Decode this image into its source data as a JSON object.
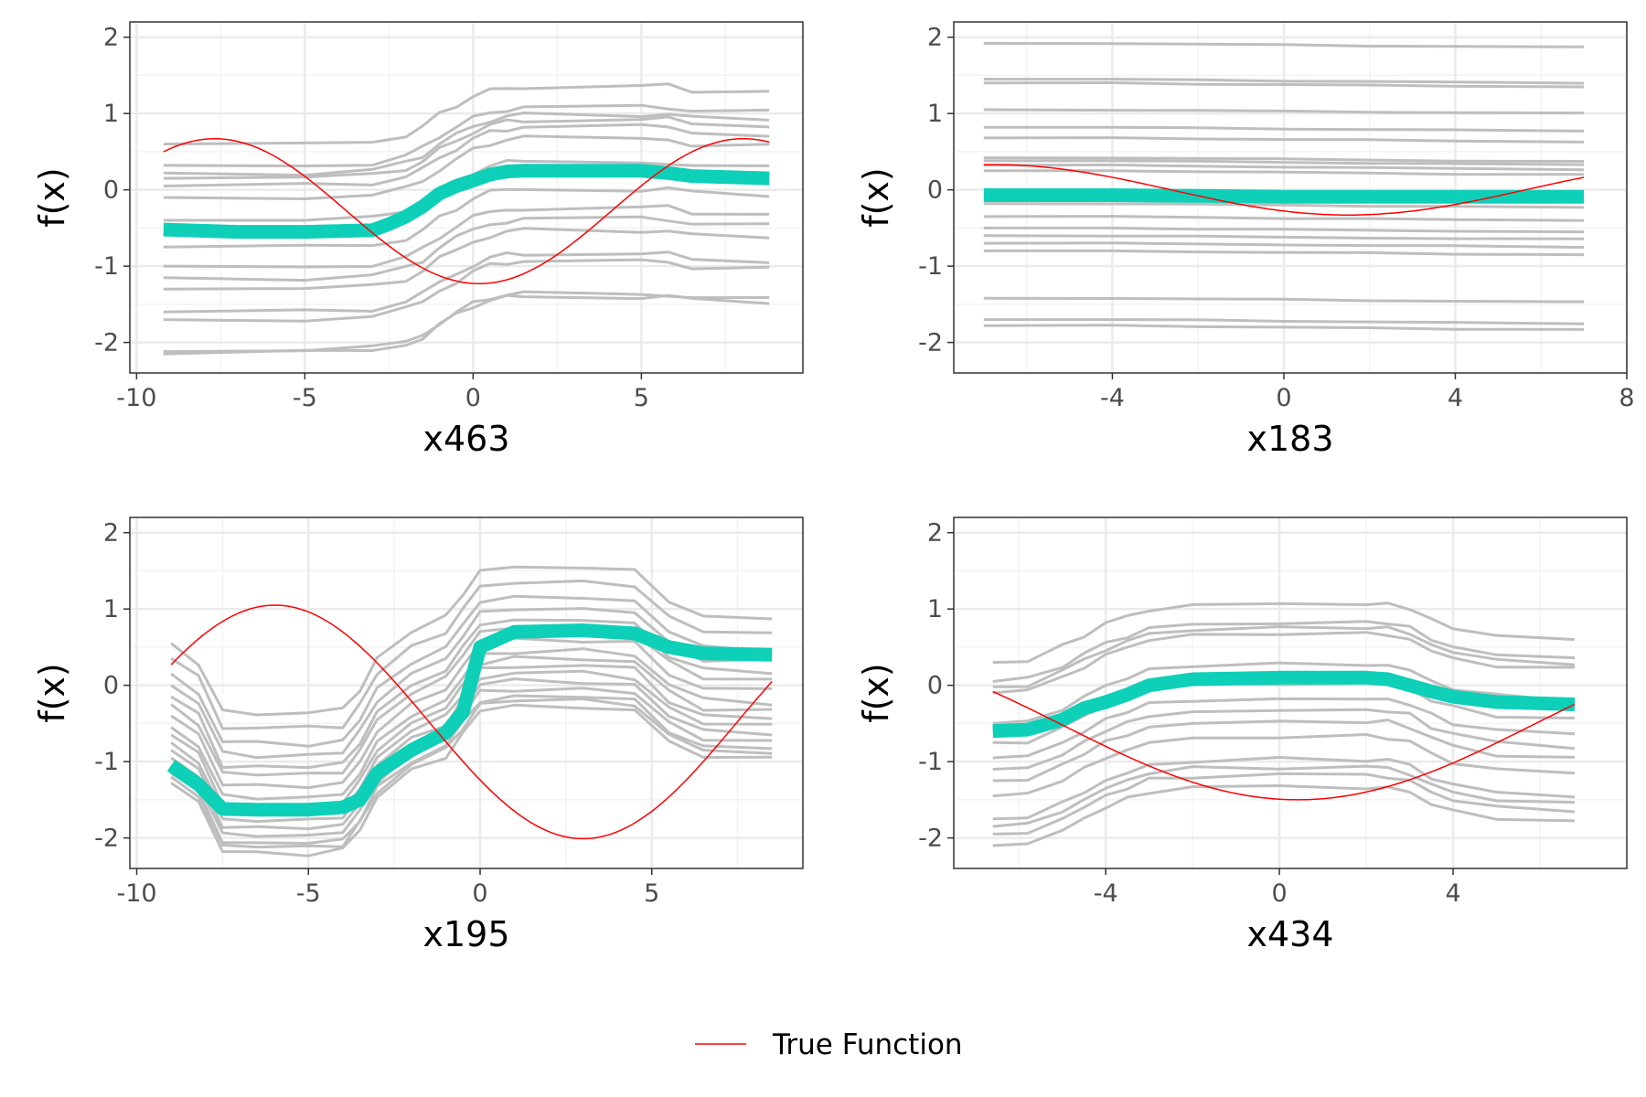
{
  "colors": {
    "ice": "#bebebe",
    "pdp": "#0ecfb8",
    "true_function": "#ff0000",
    "grid_major": "#ebebeb",
    "grid_minor": "#f3f3f3",
    "panel_border": "#333333",
    "tick_text": "#4d4d4d"
  },
  "legend": {
    "items": [
      {
        "label": "True Function",
        "color": "#ff0000"
      }
    ],
    "position": "bottom-center"
  },
  "chart_data": [
    {
      "type": "line",
      "xlabel": "x463",
      "ylabel": "f(x)",
      "xlim": [
        -10.2,
        9.8
      ],
      "ylim": [
        -2.4,
        2.2
      ],
      "xticks": [
        -10,
        -5,
        0,
        5
      ],
      "xtick_labels": [
        "-10",
        "-5",
        "0",
        "5"
      ],
      "yticks": [
        -2,
        -1,
        0,
        1,
        2
      ],
      "ytick_labels": [
        "-2",
        "-1",
        "0",
        "1",
        "2"
      ],
      "grid": true,
      "ice": {
        "x": [
          -9.2,
          -5,
          -3,
          -2,
          -1.5,
          -1,
          -0.5,
          0,
          0.5,
          1,
          1.5,
          5,
          5.8,
          6.5,
          8.8
        ],
        "offsets": [
          0.6,
          0.32,
          0.22,
          0.15,
          0.05,
          -0.1,
          -0.4,
          -0.75,
          -1.0,
          -1.15,
          -1.3,
          -1.6,
          -1.7,
          -2.12,
          -2.15
        ],
        "shape": [
          0,
          0,
          0.03,
          0.12,
          0.22,
          0.38,
          0.5,
          0.62,
          0.7,
          0.74,
          0.76,
          0.76,
          0.76,
          0.7,
          0.68
        ],
        "spread": [
          0.13,
          0.04,
          -0.02,
          -0.08,
          0.05,
          0.1,
          -0.05,
          0.0,
          0.07,
          -0.03,
          -0.1,
          0.02,
          0.08,
          -0.06,
          0.03
        ]
      },
      "pdp": {
        "x": [
          -9.2,
          -7,
          -5,
          -3,
          -2.5,
          -2,
          -1.5,
          -1,
          -0.5,
          0,
          0.5,
          1,
          1.5,
          3,
          5,
          5.8,
          6.5,
          8.8
        ],
        "y": [
          -0.52,
          -0.55,
          -0.55,
          -0.53,
          -0.45,
          -0.35,
          -0.22,
          -0.05,
          0.05,
          0.12,
          0.2,
          0.24,
          0.25,
          0.25,
          0.25,
          0.22,
          0.18,
          0.15
        ]
      },
      "true_function": {
        "amplitude": 0.95,
        "omega": 0.4,
        "phase": 1.5,
        "offset": -0.28,
        "xrange": [
          -9.2,
          8.8
        ]
      }
    },
    {
      "type": "line",
      "xlabel": "x183",
      "ylabel": "f(x)",
      "xlim": [
        -7.7,
        8.0
      ],
      "ylim": [
        -2.4,
        2.2
      ],
      "xticks": [
        -4,
        0,
        4,
        8
      ],
      "xtick_labels": [
        "-4",
        "0",
        "4",
        "8"
      ],
      "yticks": [
        -2,
        -1,
        0,
        1,
        2
      ],
      "ytick_labels": [
        "-2",
        "-1",
        "0",
        "1",
        "2"
      ],
      "grid": true,
      "ice": {
        "x": [
          -7,
          -4,
          -2,
          0,
          2,
          4,
          7
        ],
        "offsets": [
          1.92,
          1.45,
          1.4,
          1.05,
          0.82,
          0.68,
          0.42,
          0.38,
          0.32,
          0.25,
          -0.18,
          -0.35,
          -0.5,
          -0.6,
          -0.7,
          -0.8,
          -1.42,
          -1.7,
          -1.78
        ],
        "shape": [
          0,
          0,
          -0.01,
          -0.02,
          -0.03,
          -0.04,
          -0.05
        ],
        "spread": [
          0.02,
          -0.01,
          0.0,
          0.01,
          -0.02,
          0.0,
          0.01,
          -0.01,
          0.0,
          0.02,
          0.0,
          -0.01,
          0.01,
          0.0,
          -0.02,
          0.01,
          0.0,
          -0.01,
          0.0
        ]
      },
      "pdp": {
        "x": [
          -7,
          -4,
          -2,
          0,
          2,
          4,
          7
        ],
        "y": [
          -0.07,
          -0.07,
          -0.08,
          -0.09,
          -0.09,
          -0.09,
          -0.09
        ]
      },
      "true_function": {
        "amplitude": 0.33,
        "omega": 0.38,
        "phase": 1.0,
        "offset": 0.0,
        "xrange": [
          -7,
          7
        ]
      }
    },
    {
      "type": "line",
      "xlabel": "x195",
      "ylabel": "f(x)",
      "xlim": [
        -10.2,
        9.4
      ],
      "ylim": [
        -2.4,
        2.2
      ],
      "xticks": [
        -10,
        -5,
        0,
        5
      ],
      "xtick_labels": [
        "-10",
        "-5",
        "0",
        "5"
      ],
      "yticks": [
        -2,
        -1,
        0,
        1,
        2
      ],
      "ytick_labels": [
        "-2",
        "-1",
        "0",
        "1",
        "2"
      ],
      "grid": true,
      "ice": {
        "x": [
          -9,
          -8.2,
          -7.5,
          -6.5,
          -5,
          -4,
          -3.5,
          -3,
          -2,
          -1,
          -0.5,
          0,
          1,
          3,
          4.5,
          5.5,
          6.5,
          8.5
        ],
        "offsets": [
          1.55,
          1.35,
          1.15,
          1.0,
          0.85,
          0.75,
          0.6,
          0.45,
          0.35,
          0.25,
          0.15,
          0.05,
          -0.05,
          -0.15,
          -0.2,
          -0.28
        ],
        "shape": [
          -1.0,
          -1.25,
          -1.9,
          -1.92,
          -1.92,
          -1.88,
          -1.6,
          -1.2,
          -0.85,
          -0.65,
          -0.35,
          -0.05,
          0.0,
          0.0,
          -0.05,
          -0.45,
          -0.65,
          -0.68
        ],
        "spread": [
          0.05,
          -0.1,
          0.08,
          -0.05,
          0.03,
          0.1,
          -0.08,
          0.04,
          -0.02,
          0.06,
          -0.06,
          0.02,
          0.0,
          -0.04,
          0.05,
          -0.03,
          0.02,
          0.0
        ]
      },
      "pdp": {
        "x": [
          -9,
          -8.2,
          -7.5,
          -6.5,
          -5,
          -4,
          -3.5,
          -3,
          -2,
          -1,
          -0.5,
          0,
          1,
          3,
          4.5,
          5.5,
          6.5,
          8.5
        ],
        "y": [
          -1.05,
          -1.3,
          -1.62,
          -1.63,
          -1.63,
          -1.6,
          -1.5,
          -1.15,
          -0.85,
          -0.62,
          -0.35,
          0.5,
          0.7,
          0.72,
          0.68,
          0.5,
          0.42,
          0.4
        ]
      },
      "true_function": {
        "amplitude": 1.53,
        "omega": 0.35,
        "phase": 0.52,
        "offset": -0.48,
        "xrange": [
          -9,
          8.5
        ]
      }
    },
    {
      "type": "line",
      "xlabel": "x434",
      "ylabel": "f(x)",
      "xlim": [
        -7.5,
        8.0
      ],
      "ylim": [
        -2.4,
        2.2
      ],
      "xticks": [
        -4,
        0,
        4
      ],
      "xtick_labels": [
        "-4",
        "0",
        "4"
      ],
      "yticks": [
        -2,
        -1,
        0,
        1,
        2
      ],
      "ytick_labels": [
        "-2",
        "-1",
        "0",
        "1",
        "2"
      ],
      "grid": true,
      "ice": {
        "x": [
          -6.6,
          -5.8,
          -5,
          -4.5,
          -4,
          -3.5,
          -3,
          -2,
          0,
          2,
          2.5,
          3,
          3.5,
          4,
          5,
          6.8
        ],
        "offsets": [
          0.3,
          0.05,
          -0.02,
          -0.1,
          -0.5,
          -0.75,
          -0.95,
          -1.1,
          -1.25,
          -1.45,
          -1.75,
          -1.85,
          -1.95,
          -2.1
        ],
        "shape": [
          0,
          0.02,
          0.2,
          0.35,
          0.5,
          0.6,
          0.7,
          0.75,
          0.77,
          0.77,
          0.76,
          0.7,
          0.55,
          0.45,
          0.35,
          0.3
        ],
        "spread": [
          0.03,
          -0.03,
          0.1,
          -0.05,
          0.06,
          0.04,
          -0.08,
          0.02,
          0.0,
          -0.04,
          0.05,
          -0.02,
          0.07,
          -0.03,
          0.01,
          0.0
        ]
      },
      "pdp": {
        "x": [
          -6.6,
          -5.8,
          -5,
          -4.5,
          -4,
          -3.5,
          -3,
          -2,
          0,
          2,
          2.5,
          3,
          3.5,
          4,
          5,
          6.8
        ],
        "y": [
          -0.6,
          -0.58,
          -0.45,
          -0.3,
          -0.22,
          -0.12,
          0.0,
          0.08,
          0.1,
          0.1,
          0.08,
          0.0,
          -0.08,
          -0.15,
          -0.22,
          -0.25
        ]
      },
      "true_function": {
        "amplitude": 0.98,
        "omega": 0.29,
        "phase": 1.45,
        "offset": -0.52,
        "xrange": [
          -6.6,
          6.8
        ]
      }
    }
  ]
}
